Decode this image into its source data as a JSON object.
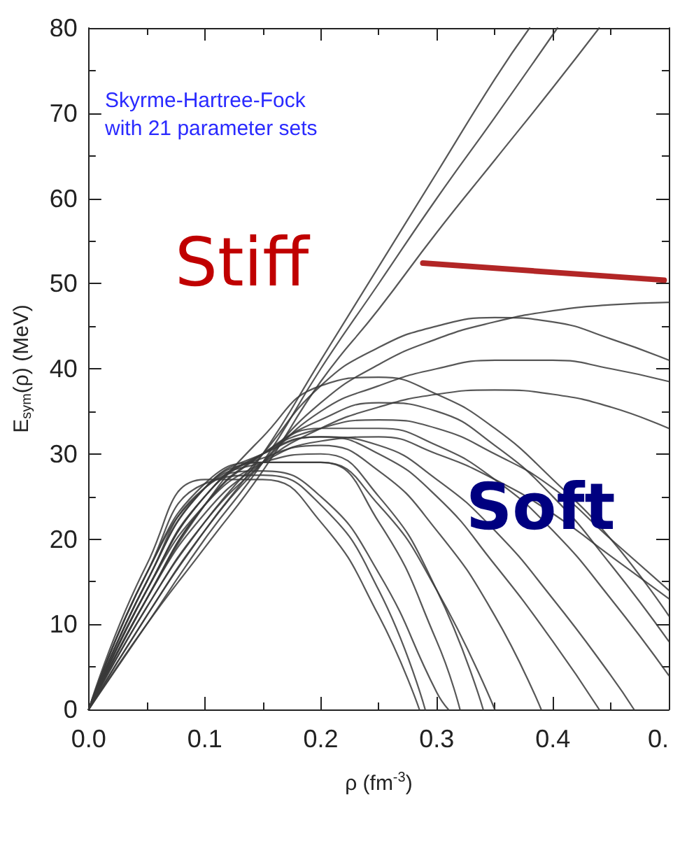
{
  "chart_data": {
    "type": "line",
    "xlabel": "ρ (fm$^{-3}$)",
    "ylabel": "E$_{sym}$(ρ) (MeV)",
    "annotations": [
      "Skyrme-Hartree-Fock\nwith 21 parameter sets",
      "Stiff",
      "Soft"
    ],
    "xlim": [
      0,
      0.5
    ],
    "ylim": [
      0,
      80
    ],
    "xticks": [
      {
        "value": 0,
        "label": "0.0"
      },
      {
        "value": 0.1,
        "label": "0.1"
      },
      {
        "value": 0.2,
        "label": "0.2"
      },
      {
        "value": 0.3,
        "label": "0.3"
      },
      {
        "value": 0.4,
        "label": "0.4"
      },
      {
        "value": 0.5,
        "label": "0."
      }
    ],
    "yticks": [
      0,
      10,
      20,
      30,
      40,
      50,
      60,
      70,
      80
    ],
    "grid": false,
    "marker": "none",
    "line_style": "solid",
    "series": [
      {
        "color": "#3a3a3a",
        "x": [
          0,
          0.05,
          0.1,
          0.15,
          0.2,
          0.25,
          0.3,
          0.35,
          0.38
        ],
        "values": [
          0,
          11,
          21,
          30,
          41,
          52,
          63,
          74,
          80
        ]
      },
      {
        "color": "#3a3a3a",
        "x": [
          0,
          0.05,
          0.1,
          0.15,
          0.2,
          0.25,
          0.3,
          0.35,
          0.404
        ],
        "values": [
          0,
          10,
          20,
          29,
          40,
          50,
          60,
          69.5,
          80
        ]
      },
      {
        "color": "#3a3a3a",
        "x": [
          0,
          0.05,
          0.1,
          0.15,
          0.2,
          0.25,
          0.3,
          0.35,
          0.4,
          0.44
        ],
        "values": [
          0,
          10,
          19,
          28,
          38.5,
          47,
          56,
          64.5,
          73,
          80
        ]
      },
      {
        "color": "#3a3a3a",
        "x": [
          0,
          0.05,
          0.1,
          0.15,
          0.2,
          0.25,
          0.3,
          0.35,
          0.4,
          0.45,
          0.5
        ],
        "values": [
          0,
          11,
          21,
          29,
          36,
          40.5,
          43.5,
          45.5,
          46.8,
          47.5,
          47.8
        ]
      },
      {
        "color": "#3a3a3a",
        "x": [
          0,
          0.05,
          0.1,
          0.15,
          0.2,
          0.25,
          0.3,
          0.35,
          0.4,
          0.45,
          0.5
        ],
        "values": [
          0,
          12,
          22,
          30,
          38,
          42.5,
          45,
          46,
          45.5,
          43.5,
          41
        ]
      },
      {
        "color": "#3a3a3a",
        "x": [
          0,
          0.05,
          0.1,
          0.15,
          0.2,
          0.25,
          0.3,
          0.35,
          0.4,
          0.45,
          0.5
        ],
        "values": [
          0,
          12,
          22,
          29,
          35,
          38,
          40,
          41,
          41,
          40,
          38.5
        ]
      },
      {
        "color": "#3a3a3a",
        "x": [
          0,
          0.05,
          0.1,
          0.15,
          0.2,
          0.25,
          0.3,
          0.35,
          0.4,
          0.45,
          0.5
        ],
        "values": [
          0,
          13,
          23,
          29,
          33,
          35.5,
          37,
          37.5,
          37,
          35.5,
          33
        ]
      },
      {
        "color": "#3a3a3a",
        "x": [
          0,
          0.05,
          0.1,
          0.15,
          0.2,
          0.25,
          0.3,
          0.35,
          0.4,
          0.45,
          0.5
        ],
        "values": [
          0,
          13,
          24,
          32,
          38,
          39,
          37,
          33,
          27,
          20,
          11
        ]
      },
      {
        "color": "#3a3a3a",
        "x": [
          0,
          0.05,
          0.1,
          0.15,
          0.2,
          0.25,
          0.3,
          0.35,
          0.4,
          0.45,
          0.5
        ],
        "values": [
          0,
          14,
          25,
          30,
          33,
          33,
          31,
          27,
          21,
          13,
          4
        ]
      },
      {
        "color": "#3a3a3a",
        "x": [
          0,
          0.05,
          0.1,
          0.15,
          0.2,
          0.25,
          0.3,
          0.35,
          0.4,
          0.45,
          0.47
        ],
        "values": [
          0,
          14,
          25,
          30,
          32,
          31,
          27,
          21,
          13,
          4,
          0
        ]
      },
      {
        "color": "#3a3a3a",
        "x": [
          0,
          0.05,
          0.1,
          0.15,
          0.2,
          0.25,
          0.3,
          0.35,
          0.4,
          0.44
        ],
        "values": [
          0,
          15,
          26,
          30,
          32,
          30,
          25,
          17,
          8,
          0
        ]
      },
      {
        "color": "#3a3a3a",
        "x": [
          0,
          0.05,
          0.1,
          0.15,
          0.2,
          0.25,
          0.3,
          0.35,
          0.39
        ],
        "values": [
          0,
          15,
          26,
          29.5,
          31,
          28,
          21,
          11,
          0
        ]
      },
      {
        "color": "#3a3a3a",
        "x": [
          0,
          0.05,
          0.1,
          0.15,
          0.2,
          0.25,
          0.3,
          0.34
        ],
        "values": [
          0,
          16,
          26,
          29,
          30,
          25,
          14,
          0
        ]
      },
      {
        "color": "#3a3a3a",
        "x": [
          0,
          0.05,
          0.1,
          0.15,
          0.2,
          0.25,
          0.3,
          0.32
        ],
        "values": [
          0,
          16,
          26.5,
          29,
          29,
          22,
          8,
          0
        ]
      },
      {
        "color": "#3a3a3a",
        "x": [
          0,
          0.05,
          0.1,
          0.15,
          0.2,
          0.25,
          0.285
        ],
        "values": [
          0,
          17,
          27,
          27,
          22,
          11,
          0
        ]
      },
      {
        "color": "#3a3a3a",
        "x": [
          0,
          0.05,
          0.1,
          0.15,
          0.2,
          0.25,
          0.29
        ],
        "values": [
          0,
          16,
          26.5,
          27.5,
          24,
          14,
          0
        ]
      },
      {
        "color": "#3a3a3a",
        "x": [
          0,
          0.05,
          0.1,
          0.15,
          0.2,
          0.25,
          0.3,
          0.31
        ],
        "values": [
          0,
          15,
          26,
          28,
          25,
          16,
          2,
          0
        ]
      },
      {
        "color": "#3a3a3a",
        "x": [
          0,
          0.05,
          0.1,
          0.15,
          0.2,
          0.25,
          0.3,
          0.35
        ],
        "values": [
          0,
          14,
          25,
          29,
          29,
          24,
          14,
          0
        ]
      },
      {
        "color": "#3a3a3a",
        "x": [
          0,
          0.05,
          0.1,
          0.15,
          0.2,
          0.25,
          0.3,
          0.35,
          0.4,
          0.45,
          0.5
        ],
        "values": [
          0,
          13,
          24,
          30,
          34,
          36,
          35,
          31,
          25,
          17,
          8
        ]
      },
      {
        "color": "#3a3a3a",
        "x": [
          0,
          0.05,
          0.1,
          0.15,
          0.2,
          0.25,
          0.3,
          0.35,
          0.4,
          0.45,
          0.5
        ],
        "values": [
          0,
          14,
          24,
          29,
          31.5,
          32,
          30,
          27,
          23,
          18,
          13
        ]
      },
      {
        "color": "#3a3a3a",
        "x": [
          0,
          0.05,
          0.1,
          0.15,
          0.2,
          0.25,
          0.3,
          0.35,
          0.4,
          0.45,
          0.5
        ],
        "values": [
          0,
          13,
          24,
          30,
          33,
          34,
          33,
          30,
          26,
          20,
          14
        ]
      },
      {
        "color": "#a50000",
        "x": [
          0.288,
          0.496
        ],
        "values": [
          52.4,
          50.4
        ]
      }
    ]
  }
}
